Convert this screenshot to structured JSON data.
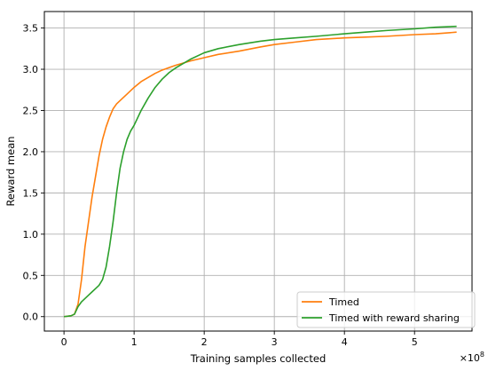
{
  "chart_data": {
    "type": "line",
    "xlabel": "Training samples collected",
    "ylabel": "Reward mean",
    "x_multiplier": "×10",
    "x_multiplier_exp": "8",
    "xlim": [
      -0.28,
      5.82
    ],
    "ylim": [
      -0.175,
      3.7
    ],
    "xticks": [
      0,
      1,
      2,
      3,
      4,
      5
    ],
    "yticks": [
      0.0,
      0.5,
      1.0,
      1.5,
      2.0,
      2.5,
      3.0,
      3.5
    ],
    "xtick_labels": [
      "0",
      "1",
      "2",
      "3",
      "4",
      "5"
    ],
    "ytick_labels": [
      "0.0",
      "0.5",
      "1.0",
      "1.5",
      "2.0",
      "2.5",
      "3.0",
      "3.5"
    ],
    "grid": true,
    "legend_position": "lower-right",
    "series": [
      {
        "name": "Timed",
        "color": "#ff7f0e",
        "x": [
          0.0,
          0.1,
          0.15,
          0.2,
          0.25,
          0.3,
          0.35,
          0.4,
          0.45,
          0.5,
          0.55,
          0.6,
          0.65,
          0.7,
          0.75,
          0.8,
          0.9,
          1.0,
          1.1,
          1.2,
          1.3,
          1.4,
          1.5,
          1.6,
          1.8,
          2.0,
          2.2,
          2.5,
          2.8,
          3.0,
          3.3,
          3.6,
          4.0,
          4.3,
          4.6,
          5.0,
          5.3,
          5.6
        ],
        "y": [
          0.0,
          0.01,
          0.03,
          0.15,
          0.45,
          0.85,
          1.15,
          1.45,
          1.7,
          1.95,
          2.15,
          2.3,
          2.42,
          2.52,
          2.58,
          2.62,
          2.7,
          2.78,
          2.85,
          2.9,
          2.95,
          2.99,
          3.02,
          3.05,
          3.1,
          3.14,
          3.18,
          3.22,
          3.27,
          3.3,
          3.33,
          3.36,
          3.38,
          3.39,
          3.4,
          3.42,
          3.43,
          3.45
        ]
      },
      {
        "name": "Timed with reward sharing",
        "color": "#2ca02c",
        "x": [
          0.0,
          0.1,
          0.15,
          0.2,
          0.25,
          0.3,
          0.35,
          0.4,
          0.45,
          0.5,
          0.55,
          0.6,
          0.65,
          0.7,
          0.75,
          0.8,
          0.85,
          0.9,
          0.95,
          1.0,
          1.1,
          1.2,
          1.3,
          1.4,
          1.5,
          1.6,
          1.8,
          2.0,
          2.2,
          2.5,
          2.8,
          3.0,
          3.3,
          3.6,
          4.0,
          4.3,
          4.6,
          5.0,
          5.3,
          5.6
        ],
        "y": [
          0.0,
          0.01,
          0.03,
          0.12,
          0.18,
          0.22,
          0.26,
          0.3,
          0.34,
          0.38,
          0.45,
          0.6,
          0.85,
          1.15,
          1.5,
          1.8,
          2.0,
          2.15,
          2.25,
          2.32,
          2.5,
          2.65,
          2.78,
          2.88,
          2.96,
          3.02,
          3.12,
          3.2,
          3.25,
          3.3,
          3.34,
          3.36,
          3.38,
          3.4,
          3.43,
          3.45,
          3.47,
          3.49,
          3.51,
          3.52
        ]
      }
    ]
  }
}
